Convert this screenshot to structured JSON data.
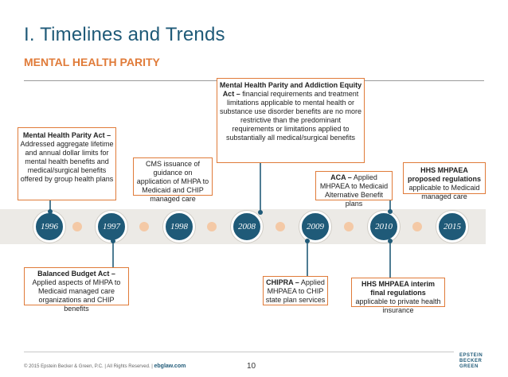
{
  "header": {
    "title": "I. Timelines and Trends",
    "subtitle": "MENTAL HEALTH PARITY"
  },
  "timeline": {
    "years": [
      "1996",
      "1997",
      "1998",
      "2008",
      "2009",
      "2010",
      "2015"
    ]
  },
  "events": {
    "mhpa": {
      "bold": "Mental Health Parity Act –",
      "text": " Addressed aggregate lifetime and annual dollar limits for mental health benefits and medical/surgical benefits offered by group health plans"
    },
    "bba": {
      "bold": "Balanced Budget Act –",
      "text": " Applied aspects of MHPA to Medicaid managed care organizations and CHIP benefits"
    },
    "cms": {
      "text": "CMS issuance of guidance on application of MHPA to Medicaid and CHIP managed care"
    },
    "mhpaea": {
      "bold": "Mental Health Parity and Addiction Equity Act –",
      "text": " financial requirements and treatment limitations applicable to mental health or substance use disorder benefits are no more restrictive than the predominant requirements or limitations applied to substantially all medical/surgical benefits"
    },
    "chipra": {
      "bold": "CHIPRA –",
      "text": " Applied MHPAEA to CHIP state plan services"
    },
    "aca": {
      "bold": "ACA –",
      "text": " Applied MHPAEA to Medicaid Alternative Benefit plans"
    },
    "interim": {
      "bold": "HHS MHPAEA interim final regulations",
      "text": " applicable to private health insurance"
    },
    "proposed": {
      "bold": "HHS MHPAEA proposed regulations",
      "text": " applicable to Medicaid managed care"
    }
  },
  "footer": {
    "copyright": "© 2015 Epstein Becker & Green, P.C. | All Rights Reserved. |",
    "site": "ebglaw.com",
    "page_number": "10",
    "logo_lines": [
      "EPSTEIN",
      "BECKER",
      "GREEN"
    ]
  },
  "colors": {
    "primary": "#1f5a78",
    "accent": "#e07b39",
    "dot": "#f4c9a6",
    "band": "#eceae6"
  }
}
